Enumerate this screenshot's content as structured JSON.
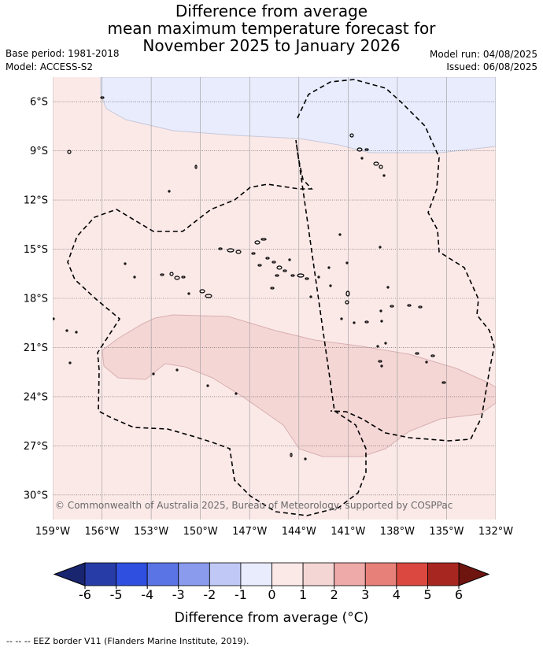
{
  "title": {
    "line1": "Difference from average",
    "line2": "mean maximum temperature forecast for",
    "line3": "November 2025 to January 2026"
  },
  "meta": {
    "base_period": "Base period: 1981-2018",
    "model": "Model: ACCESS-S2",
    "model_run": "Model run: 04/08/2025",
    "issued": "Issued: 06/08/2025"
  },
  "map": {
    "lon_range": [
      -159,
      -132
    ],
    "lat_range": [
      -31.5,
      -4.5
    ],
    "lat_ticks": [
      "6°S",
      "9°S",
      "12°S",
      "15°S",
      "18°S",
      "21°S",
      "24°S",
      "27°S",
      "30°S"
    ],
    "lon_ticks": [
      "159°W",
      "156°W",
      "153°W",
      "150°W",
      "147°W",
      "144°W",
      "141°W",
      "138°W",
      "135°W",
      "132°W"
    ],
    "background_color": "#fbe9e8",
    "cool_region_color": "#e8ecfc",
    "warm_region_color": "#f4d6d5",
    "copyright": "© Commonwealth of Australia 2025, Bureau of Meteorology, supported by COSPPac"
  },
  "colorbar": {
    "ticks": [
      "-6",
      "-5",
      "-4",
      "-3",
      "-2",
      "-1",
      "0",
      "1",
      "2",
      "3",
      "4",
      "5",
      "6"
    ],
    "colors": [
      "#283ca8",
      "#2f4fe0",
      "#5a74e6",
      "#8a9bed",
      "#c0c8f6",
      "#e8ecfc",
      "#fbe9e8",
      "#f4d6d5",
      "#eeaaa8",
      "#e8807a",
      "#da4840",
      "#a82620"
    ],
    "under_color": "#1a2570",
    "over_color": "#6e1510",
    "label": "Difference from average (°C)"
  },
  "footnote": "--  --  -- EEZ border V11 (Flanders Marine Institute, 2019)."
}
